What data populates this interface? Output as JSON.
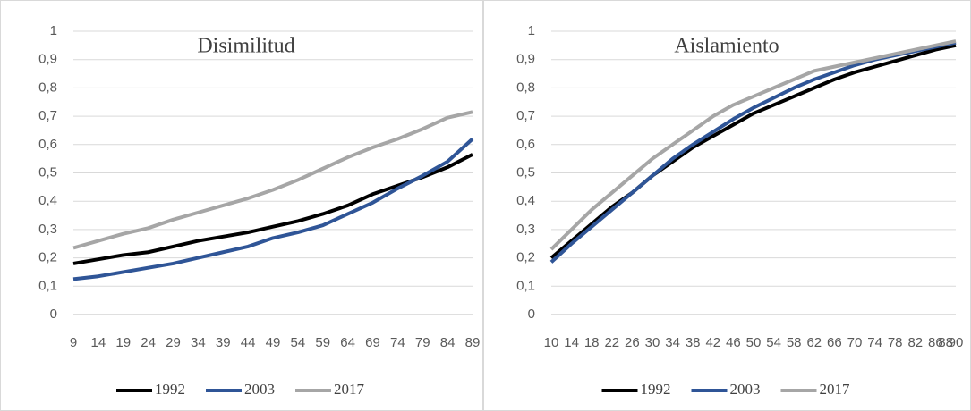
{
  "chart_data": [
    {
      "type": "line",
      "title": "Disimilitud",
      "x": [
        9,
        14,
        19,
        24,
        29,
        34,
        39,
        44,
        49,
        54,
        59,
        64,
        69,
        74,
        79,
        84,
        89
      ],
      "series": [
        {
          "name": "1992",
          "color": "#000000",
          "values": [
            0.18,
            0.195,
            0.21,
            0.22,
            0.24,
            0.26,
            0.275,
            0.29,
            0.31,
            0.33,
            0.355,
            0.385,
            0.425,
            0.455,
            0.485,
            0.52,
            0.565
          ]
        },
        {
          "name": "2003",
          "color": "#2f5597",
          "values": [
            0.125,
            0.135,
            0.15,
            0.165,
            0.18,
            0.2,
            0.22,
            0.24,
            0.27,
            0.29,
            0.315,
            0.355,
            0.395,
            0.445,
            0.49,
            0.54,
            0.62
          ]
        },
        {
          "name": "2017",
          "color": "#a6a6a6",
          "values": [
            0.235,
            0.26,
            0.285,
            0.305,
            0.335,
            0.36,
            0.385,
            0.41,
            0.44,
            0.475,
            0.515,
            0.555,
            0.59,
            0.62,
            0.655,
            0.695,
            0.715
          ]
        }
      ],
      "xlim": [
        9,
        89
      ],
      "xticks": [
        9,
        14,
        19,
        24,
        29,
        34,
        39,
        44,
        49,
        54,
        59,
        64,
        69,
        74,
        79,
        84,
        89
      ],
      "ylim": [
        0,
        1
      ],
      "yticks": [
        0,
        {
          "value": 0.1,
          "label": "0,1"
        },
        {
          "value": 0.2,
          "label": "0,2"
        },
        {
          "value": 0.3,
          "label": "0,3"
        },
        {
          "value": 0.4,
          "label": "0,4"
        },
        {
          "value": 0.5,
          "label": "0,5"
        },
        {
          "value": 0.6,
          "label": "0,6"
        },
        {
          "value": 0.7,
          "label": "0,7"
        },
        {
          "value": 0.8,
          "label": "0,8"
        },
        {
          "value": 0.9,
          "label": "0,9"
        },
        1
      ],
      "grid": true,
      "legend": "bottom"
    },
    {
      "type": "line",
      "title": "Aislamiento",
      "x": [
        10,
        14,
        18,
        22,
        26,
        30,
        34,
        38,
        42,
        46,
        50,
        54,
        58,
        62,
        66,
        70,
        74,
        78,
        82,
        86,
        90
      ],
      "series": [
        {
          "name": "1992",
          "color": "#000000",
          "values": [
            0.2,
            0.26,
            0.32,
            0.38,
            0.43,
            0.49,
            0.54,
            0.59,
            0.63,
            0.67,
            0.71,
            0.74,
            0.77,
            0.8,
            0.83,
            0.855,
            0.875,
            0.895,
            0.915,
            0.935,
            0.95
          ]
        },
        {
          "name": "2003",
          "color": "#2f5597",
          "values": [
            0.185,
            0.25,
            0.31,
            0.37,
            0.43,
            0.49,
            0.55,
            0.6,
            0.645,
            0.69,
            0.73,
            0.765,
            0.8,
            0.83,
            0.855,
            0.88,
            0.9,
            0.915,
            0.93,
            0.945,
            0.96
          ]
        },
        {
          "name": "2017",
          "color": "#a6a6a6",
          "values": [
            0.23,
            0.3,
            0.37,
            0.43,
            0.49,
            0.55,
            0.6,
            0.65,
            0.7,
            0.74,
            0.77,
            0.8,
            0.83,
            0.86,
            0.875,
            0.89,
            0.905,
            0.92,
            0.935,
            0.95,
            0.965
          ]
        }
      ],
      "xlim": [
        10,
        90
      ],
      "xticks": [
        10,
        14,
        18,
        22,
        26,
        30,
        34,
        38,
        42,
        46,
        50,
        54,
        58,
        62,
        66,
        70,
        74,
        78,
        82,
        86,
        88,
        90
      ],
      "ylim": [
        0,
        1
      ],
      "yticks": [
        0,
        {
          "value": 0.1,
          "label": "0,1"
        },
        {
          "value": 0.2,
          "label": "0,2"
        },
        {
          "value": 0.3,
          "label": "0,3"
        },
        {
          "value": 0.4,
          "label": "0,4"
        },
        {
          "value": 0.5,
          "label": "0,5"
        },
        {
          "value": 0.6,
          "label": "0,6"
        },
        {
          "value": 0.7,
          "label": "0,7"
        },
        {
          "value": 0.8,
          "label": "0,8"
        },
        {
          "value": 0.9,
          "label": "0,9"
        },
        1
      ],
      "grid": true,
      "legend": "bottom"
    }
  ]
}
